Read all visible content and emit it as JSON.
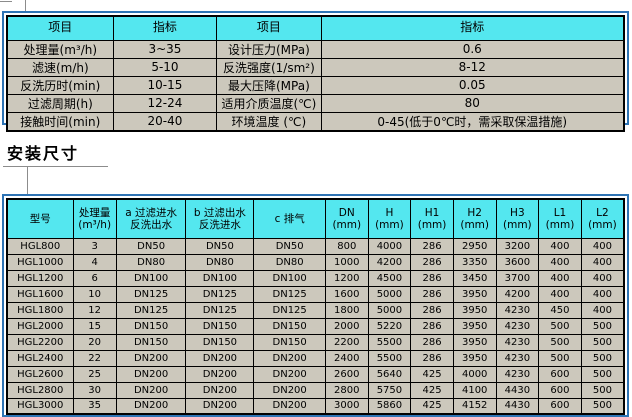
{
  "colors": {
    "header_bg": "#54e7ef",
    "cell_bg": "#ccc8bc",
    "frame_blue": "#2e74b5",
    "line_gray": "#8c8c8c",
    "border_black": "#000000"
  },
  "section_heading": "安装尺寸",
  "spec_table": {
    "headers": [
      "项目",
      "指标",
      "项目",
      "指标"
    ],
    "rows": [
      [
        "处理量(m³/h)",
        "3~35",
        "设计压力(MPa)",
        "0.6"
      ],
      [
        "滤速(m/h)",
        "5-10",
        "反洗强度(1/sm²)",
        "8-12"
      ],
      [
        "反洗历时(min)",
        "10-15",
        "最大压降(MPa)",
        "0.05"
      ],
      [
        "过滤周期(h)",
        "12-24",
        "适用介质温度(℃)",
        "80"
      ],
      [
        "接触时间(min)",
        "20-40",
        "环境温度 (℃)",
        "0-45(低于0℃时，需采取保温措施)"
      ]
    ]
  },
  "dimension_table": {
    "headers": [
      "型号",
      "处理量\n(m³/h)",
      "a 过滤进水\n反洗出水",
      "b 过滤出水\n反洗进水",
      "c 排气",
      "DN\n(mm)",
      "H\n(mm)",
      "H1\n(mm)",
      "H2\n(mm)",
      "H3\n(mm)",
      "L1\n(mm)",
      "L2\n(mm)"
    ],
    "rows": [
      [
        "HGL800",
        "3",
        "DN50",
        "DN50",
        "DN50",
        "800",
        "4000",
        "286",
        "2950",
        "3200",
        "400",
        "400"
      ],
      [
        "HGL1000",
        "4",
        "DN80",
        "DN80",
        "DN80",
        "1000",
        "4200",
        "286",
        "3350",
        "3600",
        "400",
        "400"
      ],
      [
        "HGL1200",
        "6",
        "DN100",
        "DN100",
        "DN100",
        "1200",
        "4500",
        "286",
        "3450",
        "3700",
        "400",
        "400"
      ],
      [
        "HGL1600",
        "10",
        "DN125",
        "DN125",
        "DN125",
        "1600",
        "5000",
        "286",
        "3950",
        "4200",
        "400",
        "400"
      ],
      [
        "HGL1800",
        "12",
        "DN125",
        "DN125",
        "DN125",
        "1800",
        "5000",
        "286",
        "3950",
        "4230",
        "450",
        "400"
      ],
      [
        "HGL2000",
        "15",
        "DN150",
        "DN150",
        "DN150",
        "2000",
        "5220",
        "286",
        "3950",
        "4230",
        "500",
        "500"
      ],
      [
        "HGL2200",
        "20",
        "DN150",
        "DN150",
        "DN150",
        "2200",
        "5500",
        "286",
        "3950",
        "4230",
        "500",
        "500"
      ],
      [
        "HGL2400",
        "22",
        "DN200",
        "DN200",
        "DN200",
        "2400",
        "5500",
        "286",
        "3950",
        "4230",
        "500",
        "500"
      ],
      [
        "HGL2600",
        "25",
        "DN200",
        "DN200",
        "DN200",
        "2600",
        "5640",
        "425",
        "4000",
        "4230",
        "600",
        "500"
      ],
      [
        "HGL2800",
        "30",
        "DN200",
        "DN200",
        "DN200",
        "2800",
        "5750",
        "425",
        "4100",
        "4430",
        "600",
        "500"
      ],
      [
        "HGL3000",
        "35",
        "DN200",
        "DN200",
        "DN200",
        "3000",
        "5860",
        "425",
        "4152",
        "4430",
        "600",
        "500"
      ]
    ]
  }
}
